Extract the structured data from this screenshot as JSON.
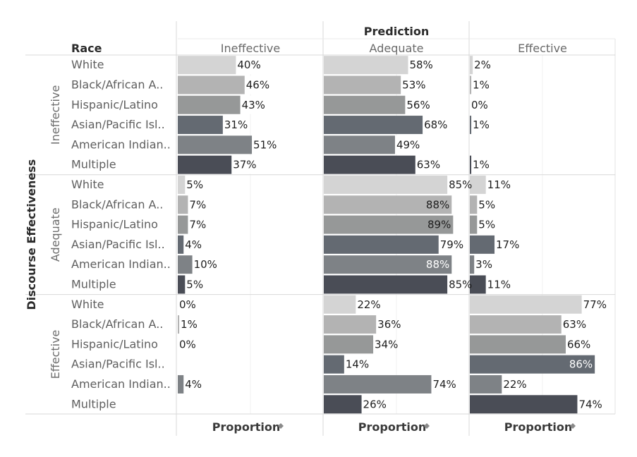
{
  "chart_data": {
    "type": "bar",
    "orientation": "horizontal",
    "title": "Prediction",
    "race_header": "Race",
    "row_group_title": "Discourse Effectiveness",
    "column_axis_label": "Proportion",
    "sort_icon": "sort-descending-icon",
    "column_groups": [
      "Ineffective",
      "Adequate",
      "Effective"
    ],
    "row_groups": [
      "Ineffective",
      "Adequate",
      "Effective"
    ],
    "races": [
      "White",
      "Black/African A..",
      "Hispanic/Latino",
      "Asian/Pacific Isl..",
      "American Indian..",
      "Multiple"
    ],
    "race_colors": [
      "#d4d4d4",
      "#b3b3b3",
      "#969898",
      "#646a72",
      "#7e8286",
      "#4a4d56"
    ],
    "xlim": [
      0,
      100
    ],
    "value_unit": "%",
    "cells": [
      {
        "row_group": "Ineffective",
        "values": [
          [
            40,
            58,
            2
          ],
          [
            46,
            53,
            1
          ],
          [
            43,
            56,
            0
          ],
          [
            31,
            68,
            1
          ],
          [
            51,
            49,
            null
          ],
          [
            37,
            63,
            1
          ]
        ]
      },
      {
        "row_group": "Adequate",
        "values": [
          [
            5,
            85,
            11
          ],
          [
            7,
            88,
            5
          ],
          [
            7,
            89,
            5
          ],
          [
            4,
            79,
            17
          ],
          [
            10,
            88,
            3
          ],
          [
            5,
            85,
            11
          ]
        ]
      },
      {
        "row_group": "Effective",
        "values": [
          [
            0,
            22,
            77
          ],
          [
            1,
            36,
            63
          ],
          [
            0,
            34,
            66
          ],
          [
            null,
            14,
            86
          ],
          [
            4,
            74,
            22
          ],
          [
            null,
            26,
            74
          ]
        ]
      }
    ]
  }
}
